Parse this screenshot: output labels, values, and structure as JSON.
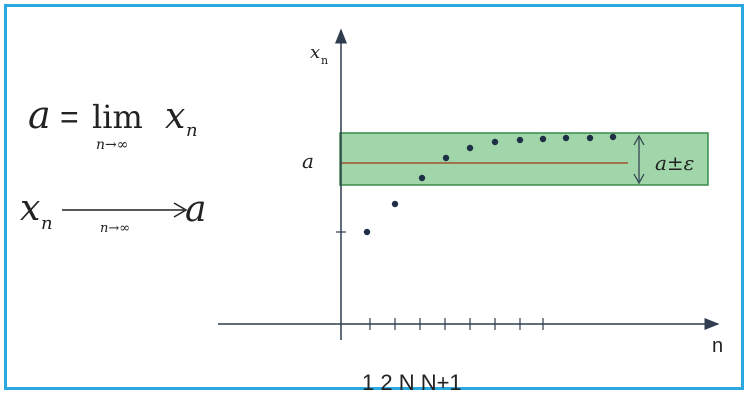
{
  "formulas": {
    "limit_lhs": "a",
    "equals": "=",
    "lim": "lim",
    "limit_var": "x",
    "limit_sub": "n",
    "under_lim": "n→∞",
    "arrow_x": "x",
    "arrow_sub": "n",
    "arrow_under": "n→∞",
    "arrow_target": "a"
  },
  "axes": {
    "y_label": "x",
    "y_label_sub": "n",
    "x_label": "n",
    "a_label": "a",
    "band_label": "a±ε"
  },
  "ticks_label": "1 2 N N+1",
  "colors": {
    "frame": "#29a9df",
    "band_fill": "#8fcf9a",
    "band_stroke": "#3a8a4a",
    "center_line": "#a0522d",
    "axis": "#2f3d4f",
    "points": "#1f2f45"
  }
}
